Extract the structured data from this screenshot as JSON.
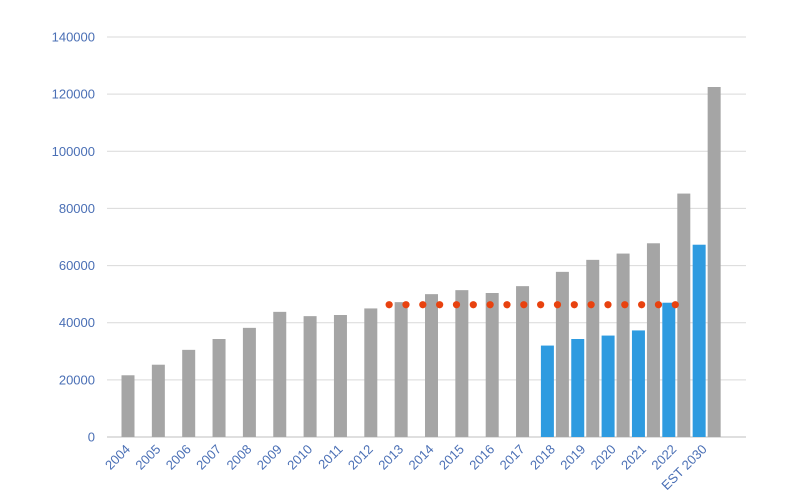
{
  "chart_data": {
    "type": "bar",
    "title": "",
    "xlabel": "",
    "ylabel": "",
    "ylim": [
      0,
      140000
    ],
    "yticks": [
      0,
      20000,
      40000,
      60000,
      80000,
      100000,
      120000,
      140000
    ],
    "grid": true,
    "legend": "none",
    "categories": [
      "2004",
      "2005",
      "2006",
      "2007",
      "2008",
      "2009",
      "2010",
      "2011",
      "2012",
      "2013",
      "2014",
      "2015",
      "2016",
      "2017",
      "2018",
      "2019",
      "2020",
      "2021",
      "2022",
      "EST 2030"
    ],
    "series": [
      {
        "color": "#2e9be0",
        "values": [
          null,
          null,
          null,
          null,
          null,
          null,
          null,
          null,
          null,
          null,
          null,
          null,
          null,
          null,
          32000,
          34300,
          35500,
          37300,
          47000,
          67300
        ]
      },
      {
        "color": "#a5a5a5",
        "values": [
          21600,
          25300,
          30500,
          34300,
          38200,
          43800,
          42300,
          42700,
          45000,
          47200,
          50000,
          51400,
          50400,
          52800,
          57800,
          62000,
          64200,
          67800,
          85200,
          122500
        ]
      }
    ],
    "reference_line": {
      "color": "#e8420f",
      "style": "dotted",
      "value": 47000,
      "from": "2013",
      "to": "2022"
    }
  }
}
